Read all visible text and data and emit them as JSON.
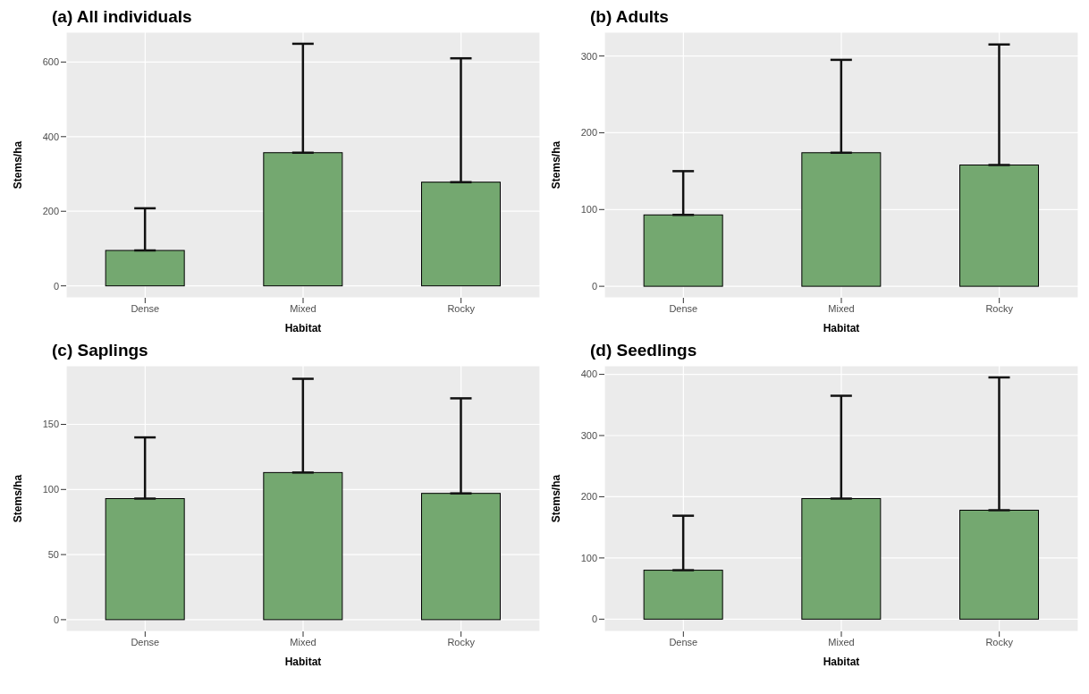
{
  "chart_data": [
    {
      "type": "bar",
      "title": "(a) All individuals",
      "xlabel": "Habitat",
      "ylabel": "Stems/ha",
      "categories": [
        "Dense",
        "Mixed",
        "Rocky"
      ],
      "values": [
        95,
        357,
        278
      ],
      "errors": [
        [
          95,
          208
        ],
        [
          357,
          649
        ],
        [
          278,
          610
        ]
      ],
      "color": "#74a870",
      "ylim": [
        -32,
        680
      ],
      "yticks": [
        0,
        200,
        400,
        600
      ],
      "grid": true
    },
    {
      "type": "bar",
      "title": "(b) Adults",
      "xlabel": "Habitat",
      "ylabel": "Stems/ha",
      "categories": [
        "Dense",
        "Mixed",
        "Rocky"
      ],
      "values": [
        93,
        174,
        158
      ],
      "errors": [
        [
          93,
          150
        ],
        [
          174,
          295
        ],
        [
          158,
          315
        ]
      ],
      "color": "#74a870",
      "ylim": [
        -15,
        331
      ],
      "yticks": [
        0,
        100,
        200,
        300
      ],
      "grid": true
    },
    {
      "type": "bar",
      "title": "(c) Saplings",
      "xlabel": "Habitat",
      "ylabel": "Stems/ha",
      "categories": [
        "Dense",
        "Mixed",
        "Rocky"
      ],
      "values": [
        93,
        113,
        97
      ],
      "errors": [
        [
          93,
          140
        ],
        [
          113,
          185
        ],
        [
          97,
          170
        ]
      ],
      "color": "#74a870",
      "ylim": [
        -9,
        195
      ],
      "yticks": [
        0,
        50,
        100,
        150
      ],
      "grid": true
    },
    {
      "type": "bar",
      "title": "(d) Seedlings",
      "xlabel": "Habitat",
      "ylabel": "Stems/ha",
      "categories": [
        "Dense",
        "Mixed",
        "Rocky"
      ],
      "values": [
        80,
        197,
        178
      ],
      "errors": [
        [
          80,
          169
        ],
        [
          197,
          365
        ],
        [
          178,
          395
        ]
      ],
      "color": "#74a870",
      "ylim": [
        -20,
        414
      ],
      "yticks": [
        0,
        100,
        200,
        300,
        400
      ],
      "grid": true
    }
  ]
}
